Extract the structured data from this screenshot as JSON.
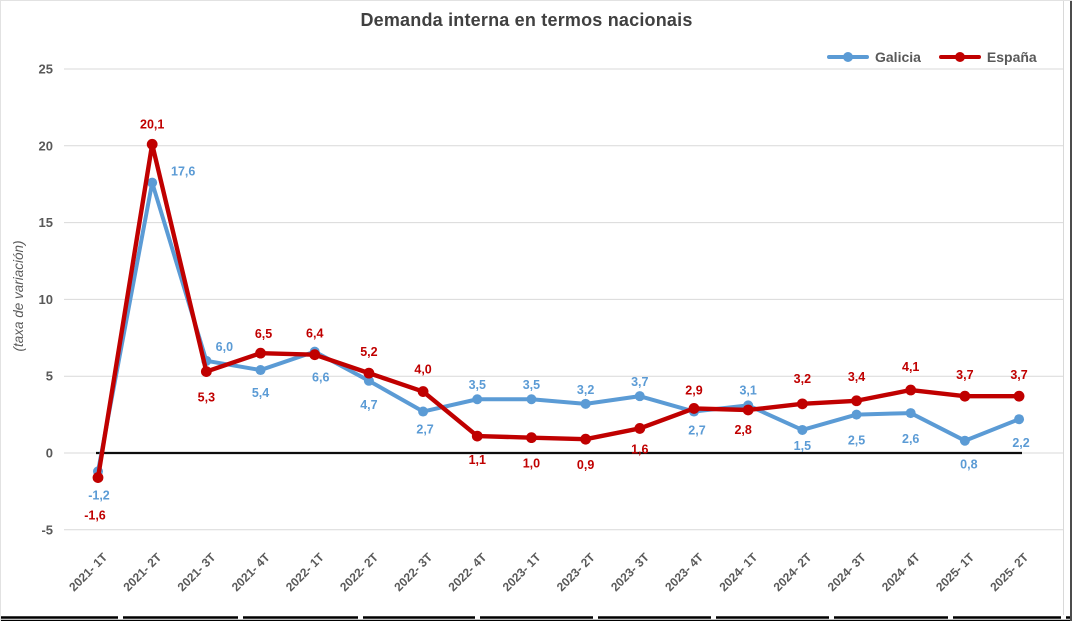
{
  "chart_data": {
    "type": "line",
    "title": "Demanda interna en termos nacionais",
    "ylabel": "(taxa de variación)",
    "x_categories": [
      "2021- 1T",
      "2021- 2T",
      "2021- 3T",
      "2021- 4T",
      "2022- 1T",
      "2022- 2T",
      "2022- 3T",
      "2022- 4T",
      "2023- 1T",
      "2023- 2T",
      "2023- 3T",
      "2023- 4T",
      "2024- 1T",
      "2024- 2T",
      "2024- 3T",
      "2024- 4T",
      "2025- 1T",
      "2025- 2T"
    ],
    "series": [
      {
        "name": "Galicia",
        "color": "#5B9BD5",
        "values": [
          -1.2,
          17.6,
          6.0,
          5.4,
          6.6,
          4.7,
          2.7,
          3.5,
          3.5,
          3.2,
          3.7,
          2.7,
          3.1,
          1.5,
          2.5,
          2.6,
          0.8,
          2.2
        ]
      },
      {
        "name": "España",
        "color": "#C00000",
        "values": [
          -1.6,
          20.1,
          5.3,
          6.5,
          6.4,
          5.2,
          4.0,
          1.1,
          1.0,
          0.9,
          1.6,
          2.9,
          2.8,
          3.2,
          3.4,
          4.1,
          3.7,
          3.7
        ]
      }
    ],
    "y_ticks": [
      25,
      20,
      15,
      10,
      5,
      0,
      -5
    ],
    "ylim": [
      -5,
      25
    ],
    "grid": true,
    "legend_position": "top-right",
    "decimal_separator": ",",
    "zero_baseline": true
  },
  "colors": {
    "gridline": "#D9D9D9",
    "axis_text": "#595959",
    "title_text": "#404040",
    "zero_line": "#0D0D0D",
    "table_border": "#000000"
  }
}
